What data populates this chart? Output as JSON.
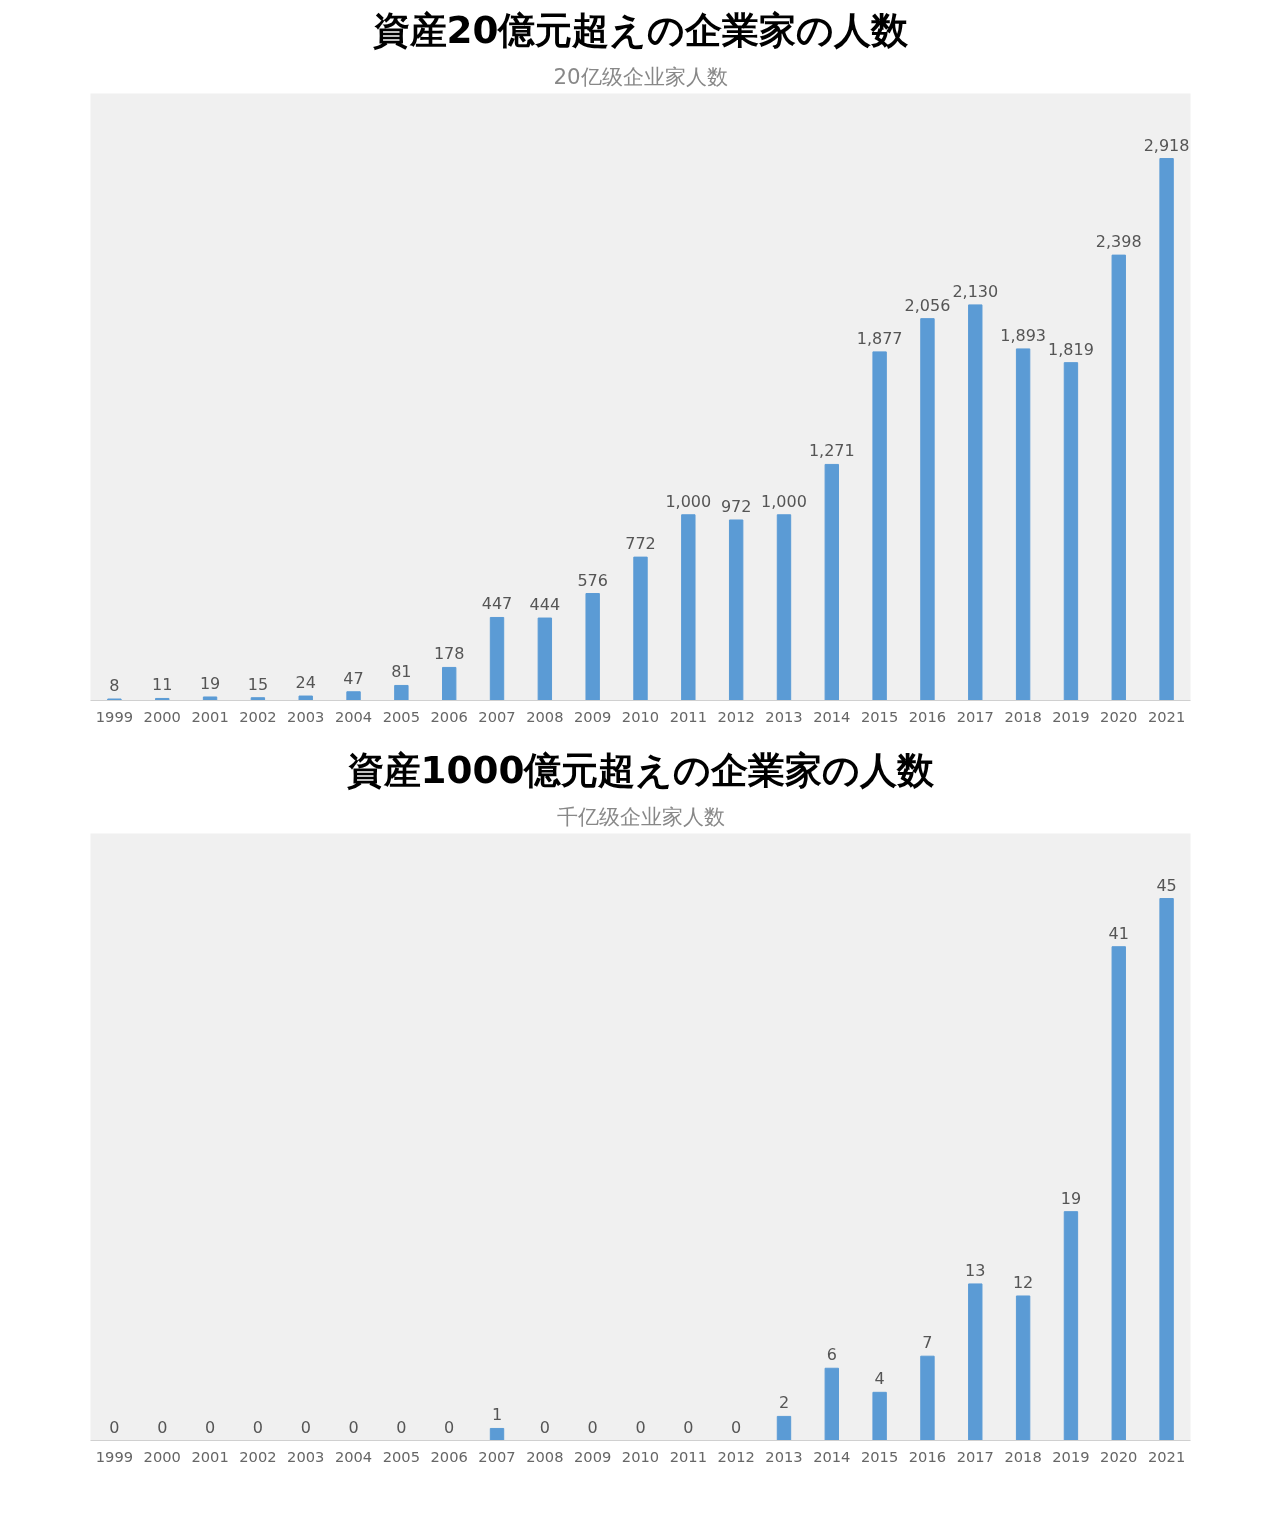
{
  "chart_data": [
    {
      "type": "bar",
      "title": "資産20億元超えの企業家の人数",
      "subtitle": "20亿级企业家人数",
      "categories": [
        "1999",
        "2000",
        "2001",
        "2002",
        "2003",
        "2004",
        "2005",
        "2006",
        "2007",
        "2008",
        "2009",
        "2010",
        "2011",
        "2012",
        "2013",
        "2014",
        "2015",
        "2016",
        "2017",
        "2018",
        "2019",
        "2020",
        "2021"
      ],
      "values": [
        8,
        11,
        19,
        15,
        24,
        47,
        81,
        178,
        447,
        444,
        576,
        772,
        1000,
        972,
        1000,
        1271,
        1877,
        2056,
        2130,
        1893,
        1819,
        2398,
        2918
      ],
      "value_labels": [
        "8",
        "11",
        "19",
        "15",
        "24",
        "47",
        "81",
        "178",
        "447",
        "444",
        "576",
        "772",
        "1,000",
        "972",
        "1,000",
        "1,271",
        "1,877",
        "2,056",
        "2,130",
        "1,893",
        "1,819",
        "2,398",
        "2,918"
      ],
      "color": "#5b9bd5",
      "grid": false,
      "tick_labels": "x"
    },
    {
      "type": "bar",
      "title": "資産1000億元超えの企業家の人数",
      "subtitle": "千亿级企业家人数",
      "categories": [
        "1999",
        "2000",
        "2001",
        "2002",
        "2003",
        "2004",
        "2005",
        "2006",
        "2007",
        "2008",
        "2009",
        "2010",
        "2011",
        "2012",
        "2013",
        "2014",
        "2015",
        "2016",
        "2017",
        "2018",
        "2019",
        "2020",
        "2021"
      ],
      "values": [
        0,
        0,
        0,
        0,
        0,
        0,
        0,
        0,
        1,
        0,
        0,
        0,
        0,
        0,
        2,
        6,
        4,
        7,
        13,
        12,
        19,
        41,
        45
      ],
      "color": "#5b9bd5",
      "data_labels": true,
      "grid": false,
      "tick_labels": "x"
    }
  ]
}
